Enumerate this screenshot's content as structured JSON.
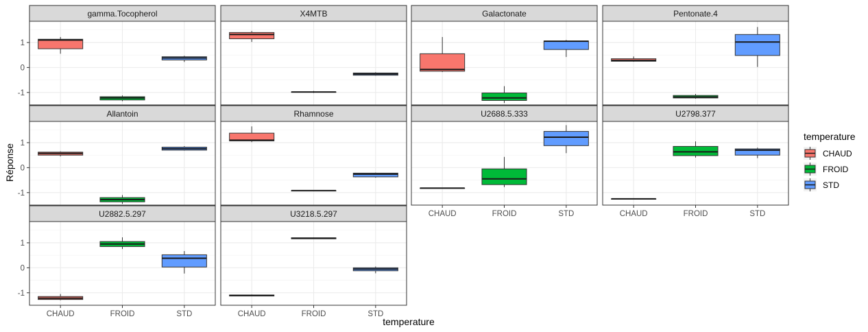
{
  "chart_data": {
    "type": "boxplot",
    "xlabel": "temperature",
    "ylabel": "Réponse",
    "categories": [
      "CHAUD",
      "FROID",
      "STD"
    ],
    "ylim": [
      -1.5,
      1.85
    ],
    "yticks": [
      -1,
      0,
      1
    ],
    "grid": true,
    "legend": {
      "title": "temperature",
      "position": "right",
      "entries": [
        {
          "label": "CHAUD",
          "color": "#F8766D"
        },
        {
          "label": "FROID",
          "color": "#00BA38"
        },
        {
          "label": "STD",
          "color": "#619CFF"
        }
      ]
    },
    "panels": [
      {
        "name": "gamma.Tocopherol",
        "boxes": [
          {
            "group": "CHAUD",
            "min": 0.55,
            "q1": 0.75,
            "median": 1.1,
            "q3": 1.13,
            "max": 1.22
          },
          {
            "group": "FROID",
            "min": -1.35,
            "q1": -1.3,
            "median": -1.22,
            "q3": -1.17,
            "max": -1.12
          },
          {
            "group": "STD",
            "min": 0.22,
            "q1": 0.3,
            "median": 0.38,
            "q3": 0.43,
            "max": 0.47
          }
        ]
      },
      {
        "name": "X4MTB",
        "boxes": [
          {
            "group": "CHAUD",
            "min": 1.02,
            "q1": 1.15,
            "median": 1.32,
            "q3": 1.4,
            "max": 1.46
          },
          {
            "group": "FROID",
            "min": -1.02,
            "q1": -0.98,
            "median": -0.98,
            "q3": -0.98,
            "max": -0.94
          },
          {
            "group": "STD",
            "min": -0.33,
            "q1": -0.31,
            "median": -0.26,
            "q3": -0.22,
            "max": -0.19
          }
        ]
      },
      {
        "name": "Galactonate",
        "boxes": [
          {
            "group": "CHAUD",
            "min": -0.18,
            "q1": -0.15,
            "median": -0.08,
            "q3": 0.55,
            "max": 1.22
          },
          {
            "group": "FROID",
            "min": -1.42,
            "q1": -1.32,
            "median": -1.22,
            "q3": -1.02,
            "max": -0.75
          },
          {
            "group": "STD",
            "min": 0.42,
            "q1": 0.72,
            "median": 1.05,
            "q3": 1.06,
            "max": 1.1
          }
        ]
      },
      {
        "name": "Pentonate.4",
        "boxes": [
          {
            "group": "CHAUD",
            "min": 0.23,
            "q1": 0.25,
            "median": 0.28,
            "q3": 0.35,
            "max": 0.44
          },
          {
            "group": "FROID",
            "min": -1.25,
            "q1": -1.22,
            "median": -1.18,
            "q3": -1.12,
            "max": -1.06
          },
          {
            "group": "STD",
            "min": 0.02,
            "q1": 0.48,
            "median": 1.02,
            "q3": 1.32,
            "max": 1.62
          }
        ]
      },
      {
        "name": "Allantoin",
        "boxes": [
          {
            "group": "CHAUD",
            "min": 0.45,
            "q1": 0.5,
            "median": 0.57,
            "q3": 0.62,
            "max": 0.65
          },
          {
            "group": "FROID",
            "min": -1.45,
            "q1": -1.37,
            "median": -1.28,
            "q3": -1.2,
            "max": -1.1
          },
          {
            "group": "STD",
            "min": 0.68,
            "q1": 0.7,
            "median": 0.76,
            "q3": 0.82,
            "max": 0.86
          }
        ]
      },
      {
        "name": "Rhamnose",
        "boxes": [
          {
            "group": "CHAUD",
            "min": 1.02,
            "q1": 1.07,
            "median": 1.1,
            "q3": 1.38,
            "max": 1.65
          },
          {
            "group": "FROID",
            "min": -0.93,
            "q1": -0.92,
            "median": -0.92,
            "q3": -0.92,
            "max": -0.9
          },
          {
            "group": "STD",
            "min": -0.4,
            "q1": -0.37,
            "median": -0.26,
            "q3": -0.22,
            "max": -0.2
          }
        ]
      },
      {
        "name": "U2688.5.333",
        "boxes": [
          {
            "group": "CHAUD",
            "min": -0.83,
            "q1": -0.82,
            "median": -0.82,
            "q3": -0.82,
            "max": -0.81
          },
          {
            "group": "FROID",
            "min": -0.78,
            "q1": -0.68,
            "median": -0.45,
            "q3": -0.05,
            "max": 0.43
          },
          {
            "group": "STD",
            "min": 0.58,
            "q1": 0.88,
            "median": 1.22,
            "q3": 1.45,
            "max": 1.7
          }
        ]
      },
      {
        "name": "U2798.377",
        "boxes": [
          {
            "group": "CHAUD",
            "min": -1.26,
            "q1": -1.25,
            "median": -1.25,
            "q3": -1.25,
            "max": -1.24
          },
          {
            "group": "FROID",
            "min": 0.4,
            "q1": 0.48,
            "median": 0.63,
            "q3": 0.85,
            "max": 1.05
          },
          {
            "group": "STD",
            "min": 0.38,
            "q1": 0.5,
            "median": 0.7,
            "q3": 0.75,
            "max": 0.8
          }
        ]
      },
      {
        "name": "U2882.5.297",
        "boxes": [
          {
            "group": "CHAUD",
            "min": -1.3,
            "q1": -1.27,
            "median": -1.22,
            "q3": -1.15,
            "max": -1.05
          },
          {
            "group": "FROID",
            "min": 0.75,
            "q1": 0.85,
            "median": 0.95,
            "q3": 1.05,
            "max": 1.22
          },
          {
            "group": "STD",
            "min": -0.23,
            "q1": 0.03,
            "median": 0.38,
            "q3": 0.52,
            "max": 0.67
          }
        ]
      },
      {
        "name": "U3218.5.297",
        "boxes": [
          {
            "group": "CHAUD",
            "min": -1.14,
            "q1": -1.13,
            "median": -1.11,
            "q3": -1.09,
            "max": -1.07
          },
          {
            "group": "FROID",
            "min": 1.15,
            "q1": 1.16,
            "median": 1.18,
            "q3": 1.2,
            "max": 1.21
          },
          {
            "group": "STD",
            "min": -0.22,
            "q1": -0.12,
            "median": -0.05,
            "q3": 0.0,
            "max": 0.05
          }
        ]
      }
    ]
  }
}
